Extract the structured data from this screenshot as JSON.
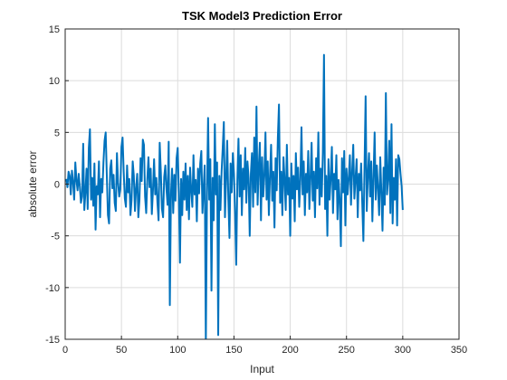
{
  "chart_data": {
    "type": "line",
    "title": "TSK Model3 Prediction Error",
    "x_label": "Input",
    "y_label": "absolute error",
    "xlim": [
      0,
      350
    ],
    "xticks": [
      0,
      50,
      100,
      150,
      200,
      250,
      300,
      350
    ],
    "ylim": [
      -15,
      15
    ],
    "yticks": [
      -15,
      -10,
      -5,
      0,
      5,
      10,
      15
    ],
    "grid": true,
    "x": [
      1,
      2,
      3,
      4,
      5,
      6,
      7,
      8,
      9,
      10,
      11,
      12,
      13,
      14,
      15,
      16,
      17,
      18,
      19,
      20,
      21,
      22,
      23,
      24,
      25,
      26,
      27,
      28,
      29,
      30,
      31,
      32,
      33,
      34,
      35,
      36,
      37,
      38,
      39,
      40,
      41,
      42,
      43,
      44,
      45,
      46,
      47,
      48,
      49,
      50,
      51,
      52,
      53,
      54,
      55,
      56,
      57,
      58,
      59,
      60,
      61,
      62,
      63,
      64,
      65,
      66,
      67,
      68,
      69,
      70,
      71,
      72,
      73,
      74,
      75,
      76,
      77,
      78,
      79,
      80,
      81,
      82,
      83,
      84,
      85,
      86,
      87,
      88,
      89,
      90,
      91,
      92,
      93,
      94,
      95,
      96,
      97,
      98,
      99,
      100,
      101,
      102,
      103,
      104,
      105,
      106,
      107,
      108,
      109,
      110,
      111,
      112,
      113,
      114,
      115,
      116,
      117,
      118,
      119,
      120,
      121,
      122,
      123,
      124,
      125,
      126,
      127,
      128,
      129,
      130,
      131,
      132,
      133,
      134,
      135,
      136,
      137,
      138,
      139,
      140,
      141,
      142,
      143,
      144,
      145,
      146,
      147,
      148,
      149,
      150,
      151,
      152,
      153,
      154,
      155,
      156,
      157,
      158,
      159,
      160,
      161,
      162,
      163,
      164,
      165,
      166,
      167,
      168,
      169,
      170,
      171,
      172,
      173,
      174,
      175,
      176,
      177,
      178,
      179,
      180,
      181,
      182,
      183,
      184,
      185,
      186,
      187,
      188,
      189,
      190,
      191,
      192,
      193,
      194,
      195,
      196,
      197,
      198,
      199,
      200,
      201,
      202,
      203,
      204,
      205,
      206,
      207,
      208,
      209,
      210,
      211,
      212,
      213,
      214,
      215,
      216,
      217,
      218,
      219,
      220,
      221,
      222,
      223,
      224,
      225,
      226,
      227,
      228,
      229,
      230,
      231,
      232,
      233,
      234,
      235,
      236,
      237,
      238,
      239,
      240,
      241,
      242,
      243,
      244,
      245,
      246,
      247,
      248,
      249,
      250,
      251,
      252,
      253,
      254,
      255,
      256,
      257,
      258,
      259,
      260,
      261,
      262,
      263,
      264,
      265,
      266,
      267,
      268,
      269,
      270,
      271,
      272,
      273,
      274,
      275,
      276,
      277,
      278,
      279,
      280,
      281,
      282,
      283,
      284,
      285,
      286,
      287,
      288,
      289,
      290,
      291,
      292,
      293,
      294,
      295,
      296,
      297,
      298,
      299,
      300
    ],
    "series": [
      {
        "color": "#0072bd",
        "values": [
          0.5,
          -0.3,
          1.2,
          0.8,
          -1.0,
          1.3,
          0.2,
          -1.5,
          2.1,
          0.4,
          -0.6,
          1.0,
          -0.2,
          -1.8,
          -1.2,
          3.9,
          -2.5,
          -0.8,
          1.5,
          -2.4,
          3.5,
          5.3,
          -1.5,
          0.6,
          -2.1,
          2.0,
          -4.4,
          -0.2,
          -1.0,
          2.2,
          -3.2,
          0.5,
          -0.8,
          2.1,
          4.2,
          5.0,
          0.8,
          -3.0,
          -3.8,
          1.5,
          2.3,
          -0.4,
          0.9,
          -1.8,
          -2.6,
          3.0,
          0.2,
          -1.2,
          -0.5,
          3.6,
          4.5,
          1.2,
          -1.4,
          -2.2,
          1.8,
          -0.8,
          0.5,
          -3.0,
          -1.5,
          2.2,
          0.8,
          -2.6,
          -0.4,
          1.0,
          -3.2,
          -1.5,
          2.5,
          0.3,
          4.3,
          3.8,
          -1.2,
          -2.8,
          0.5,
          2.6,
          -0.3,
          1.5,
          -2.9,
          -0.6,
          2.4,
          -1.0,
          0.6,
          -1.8,
          -3.5,
          4.0,
          1.2,
          -2.4,
          -3.2,
          0.7,
          1.8,
          -0.5,
          -2.0,
          4.1,
          -11.7,
          -1.0,
          1.5,
          -2.8,
          0.9,
          -1.6,
          2.5,
          3.5,
          -0.8,
          -7.6,
          0.5,
          -3.0,
          1.2,
          -1.5,
          2.0,
          -2.5,
          0.8,
          -3.4,
          1.6,
          -0.6,
          -2.2,
          2.8,
          -1.0,
          0.4,
          -3.6,
          1.5,
          -0.9,
          2.0,
          3.2,
          -2.8,
          -0.4,
          1.8,
          -15.5,
          -1.2,
          6.4,
          -1.5,
          2.4,
          -10.3,
          0.6,
          -3.5,
          5.8,
          -1.0,
          2.1,
          -14.6,
          0.8,
          -2.5,
          1.2,
          3.5,
          6.0,
          -3.2,
          0.5,
          4.2,
          -1.5,
          -5.2,
          2.0,
          -0.8,
          3.0,
          1.0,
          -2.8,
          -7.8,
          0.4,
          4.4,
          -1.2,
          2.8,
          -3.0,
          1.5,
          -0.5,
          3.5,
          -1.8,
          2.2,
          0.6,
          -5.0,
          1.0,
          3.0,
          -2.2,
          4.5,
          -0.8,
          7.5,
          -2.0,
          1.6,
          4.0,
          -3.5,
          2.6,
          -1.2,
          0.8,
          5.0,
          -1.5,
          2.2,
          -3.0,
          0.8,
          3.8,
          -1.6,
          1.2,
          -4.2,
          2.5,
          -0.6,
          4.5,
          7.7,
          -1.8,
          1.2,
          -3.0,
          2.6,
          0.4,
          -2.5,
          3.8,
          -1.0,
          0.6,
          -5.0,
          2.0,
          -1.4,
          0.8,
          -3.6,
          3.0,
          -0.5,
          1.6,
          -2.2,
          0.4,
          5.5,
          -1.0,
          2.2,
          -3.0,
          1.0,
          -0.8,
          3.2,
          -2.4,
          0.6,
          4.0,
          -1.6,
          1.2,
          -3.2,
          2.5,
          -0.4,
          5.0,
          -2.0,
          1.5,
          -1.2,
          3.0,
          12.5,
          -2.4,
          0.8,
          -5.0,
          2.4,
          -1.5,
          0.6,
          3.6,
          -2.8,
          1.0,
          -0.5,
          2.8,
          -3.4,
          0.4,
          -1.6,
          -6.0,
          2.5,
          -0.8,
          3.2,
          -4.0,
          1.5,
          -1.0,
          0.6,
          2.8,
          -2.0,
          1.2,
          3.8,
          -1.4,
          0.5,
          2.4,
          -3.2,
          1.0,
          -0.6,
          2.0,
          -1.8,
          -5.5,
          1.5,
          8.5,
          -2.6,
          0.8,
          3.0,
          -1.2,
          2.2,
          -3.6,
          0.6,
          5.0,
          -1.5,
          1.8,
          -0.4,
          -3.0,
          2.6,
          -0.8,
          -4.5,
          1.6,
          -2.0,
          8.8,
          -1.0,
          0.5,
          4.2,
          -2.8,
          5.8,
          -3.8,
          0.6,
          -1.5,
          2.4,
          -4.0,
          2.8,
          2.4,
          1.0,
          -0.2,
          -2.5
        ]
      }
    ]
  }
}
